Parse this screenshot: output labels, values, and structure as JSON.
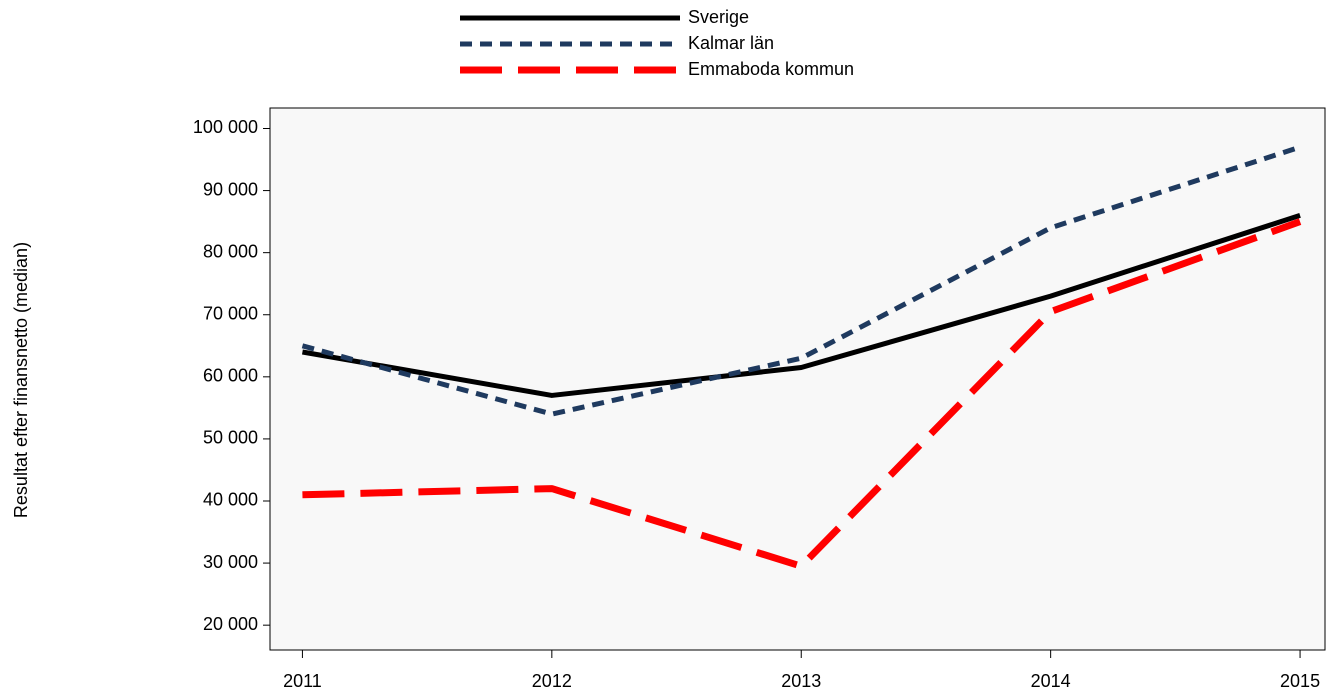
{
  "chart_data": {
    "type": "line",
    "ylabel": "Resultat efter finansnetto (median)",
    "x": [
      2011,
      2012,
      2013,
      2014,
      2015
    ],
    "xlim": [
      2010.87,
      2015.1
    ],
    "xticks": [
      2011,
      2012,
      2013,
      2014,
      2015
    ],
    "ylim": [
      16000,
      103300
    ],
    "yticks": [
      {
        "value": 20000,
        "label": "20 000"
      },
      {
        "value": 30000,
        "label": "30 000"
      },
      {
        "value": 40000,
        "label": "40 000"
      },
      {
        "value": 50000,
        "label": "50 000"
      },
      {
        "value": 60000,
        "label": "60 000"
      },
      {
        "value": 70000,
        "label": "70 000"
      },
      {
        "value": 80000,
        "label": "80 000"
      },
      {
        "value": 90000,
        "label": "90 000"
      },
      {
        "value": 100000,
        "label": "100 000"
      }
    ],
    "grid": false,
    "legend": "top",
    "series": [
      {
        "name": "Sverige",
        "color": "#000000",
        "style": "solid",
        "values": [
          64000,
          57000,
          61500,
          73000,
          86000
        ]
      },
      {
        "name": "Kalmar län",
        "color": "#1f3a5f",
        "style": "dashed",
        "values": [
          65000,
          54000,
          63000,
          84000,
          97000
        ]
      },
      {
        "name": "Emmaboda kommun",
        "color": "#ff0000",
        "style": "long-dashed",
        "values": [
          41000,
          42000,
          29500,
          70500,
          85000
        ]
      }
    ]
  }
}
